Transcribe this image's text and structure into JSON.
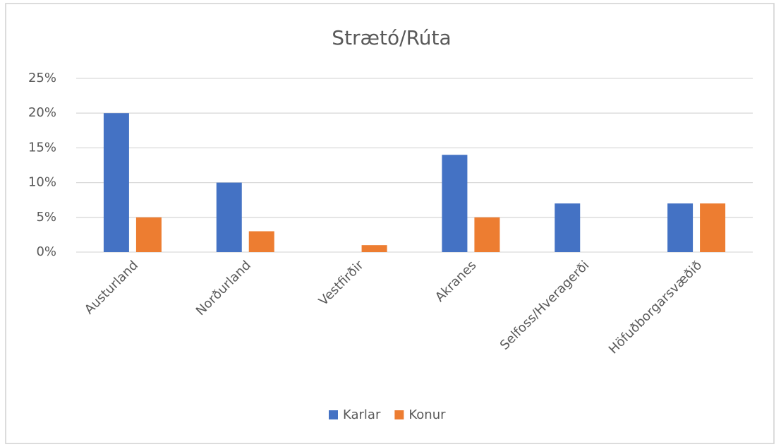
{
  "chart_data": {
    "type": "bar",
    "title": "Strætó/Rúta",
    "categories": [
      "Austurland",
      "Norðurland",
      "Vestfirðir",
      "Akranes",
      "Selfoss/Hveragerði",
      "Höfuðborgarsvæðið"
    ],
    "series": [
      {
        "name": "Karlar",
        "color": "#4472c4",
        "values": [
          20,
          10,
          0,
          14,
          7,
          7
        ]
      },
      {
        "name": "Konur",
        "color": "#ed7d31",
        "values": [
          5,
          3,
          1,
          5,
          0,
          7
        ]
      }
    ],
    "ylim": [
      0,
      25
    ],
    "yticks": [
      {
        "value": 0,
        "label": "0%"
      },
      {
        "value": 5,
        "label": "5%"
      },
      {
        "value": 10,
        "label": "10%"
      },
      {
        "value": 15,
        "label": "15%"
      },
      {
        "value": 20,
        "label": "20%"
      },
      {
        "value": 25,
        "label": "25%"
      }
    ],
    "grid": true,
    "legend": "bottom"
  }
}
